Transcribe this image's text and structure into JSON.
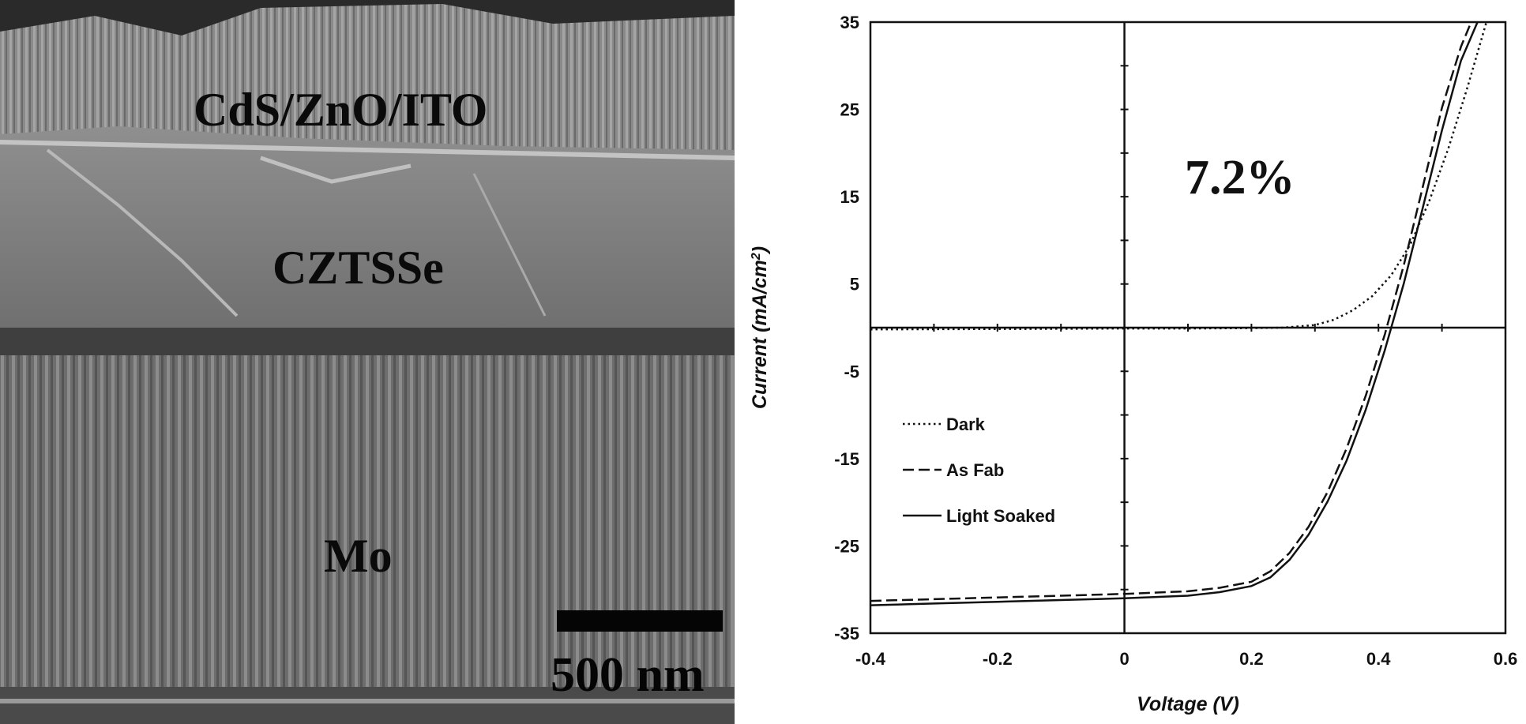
{
  "micrograph": {
    "layer_top": "CdS/ZnO/ITO",
    "layer_middle": "CZTSSe",
    "layer_bottom": "Mo",
    "scale_bar_label": "500 nm"
  },
  "chart_data": {
    "type": "line",
    "title": "",
    "xlabel": "Voltage (V)",
    "ylabel_main": "Current (mA/cm",
    "ylabel_sup": "2",
    "ylabel_close": ")",
    "xlim": [
      -0.4,
      0.6
    ],
    "ylim": [
      -35,
      35
    ],
    "x_ticks": [
      -0.4,
      -0.2,
      0,
      0.2,
      0.4,
      0.6
    ],
    "x_tick_labels": [
      "-0.4",
      "-0.2",
      "0",
      "0.2",
      "0.4",
      "0.6"
    ],
    "y_ticks": [
      -35,
      -25,
      -15,
      -5,
      5,
      15,
      25,
      35
    ],
    "y_tick_labels": [
      "-35",
      "-25",
      "-15",
      "-5",
      "5",
      "15",
      "25",
      "35"
    ],
    "annotation": "7.2%",
    "grid": false,
    "legend_position": "lower-left",
    "series": [
      {
        "name": "Dark",
        "style": "dotted",
        "x": [
          -0.4,
          -0.2,
          0.0,
          0.1,
          0.2,
          0.25,
          0.3,
          0.33,
          0.36,
          0.39,
          0.42,
          0.45,
          0.48,
          0.51,
          0.54,
          0.57
        ],
        "y": [
          -0.2,
          -0.15,
          -0.1,
          -0.1,
          -0.05,
          0.0,
          0.3,
          0.9,
          2.0,
          3.6,
          6.0,
          9.5,
          14.5,
          20.5,
          27.5,
          35.0
        ]
      },
      {
        "name": "As Fab",
        "style": "dashed",
        "x": [
          -0.4,
          -0.3,
          -0.2,
          -0.1,
          0.0,
          0.1,
          0.15,
          0.2,
          0.23,
          0.26,
          0.29,
          0.32,
          0.35,
          0.38,
          0.41,
          0.44,
          0.47,
          0.5,
          0.53,
          0.546
        ],
        "y": [
          -31.3,
          -31.1,
          -30.9,
          -30.7,
          -30.5,
          -30.2,
          -29.8,
          -29.1,
          -27.9,
          -25.8,
          -22.8,
          -18.8,
          -13.8,
          -7.8,
          -0.8,
          7.2,
          16.2,
          25.2,
          32.2,
          35.0
        ]
      },
      {
        "name": "Light Soaked",
        "style": "solid",
        "x": [
          -0.4,
          -0.3,
          -0.2,
          -0.1,
          0.0,
          0.1,
          0.15,
          0.2,
          0.23,
          0.26,
          0.29,
          0.32,
          0.35,
          0.38,
          0.41,
          0.44,
          0.47,
          0.5,
          0.53,
          0.556
        ],
        "y": [
          -31.8,
          -31.6,
          -31.4,
          -31.2,
          -31.0,
          -30.7,
          -30.3,
          -29.6,
          -28.6,
          -26.6,
          -23.7,
          -19.9,
          -15.2,
          -9.4,
          -2.6,
          5.1,
          13.8,
          22.6,
          30.6,
          35.0
        ]
      }
    ]
  }
}
